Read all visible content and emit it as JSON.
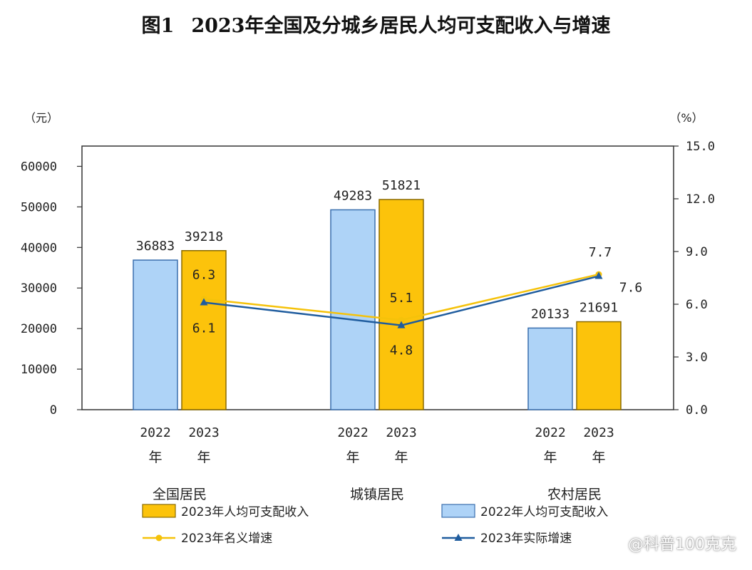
{
  "chart_data": {
    "type": "bar",
    "title_prefix": "图1",
    "title": "2023年全国及分城乡居民人均可支配收入与增速",
    "y_left_unit": "（元）",
    "y_right_unit": "（%）",
    "y_left_ticks": [
      "0",
      "10000",
      "20000",
      "30000",
      "40000",
      "50000",
      "60000"
    ],
    "y_right_ticks": [
      "0.0",
      "3.0",
      "6.0",
      "9.0",
      "12.0",
      "15.0"
    ],
    "ylim_left": [
      0,
      65000
    ],
    "ylim_right": [
      0,
      15
    ],
    "groups": [
      {
        "name": "全国居民",
        "years": [
          "2022",
          "2023"
        ],
        "year_suffix": "年",
        "income": [
          36883,
          39218
        ],
        "income_labels": [
          "36883",
          "39218"
        ],
        "nominal": 6.3,
        "nominal_label": "6.3",
        "real": 6.1,
        "real_label": "6.1"
      },
      {
        "name": "城镇居民",
        "years": [
          "2022",
          "2023"
        ],
        "year_suffix": "年",
        "income": [
          49283,
          51821
        ],
        "income_labels": [
          "49283",
          "51821"
        ],
        "nominal": 5.1,
        "nominal_label": "5.1",
        "real": 4.8,
        "real_label": "4.8"
      },
      {
        "name": "农村居民",
        "years": [
          "2022",
          "2023"
        ],
        "year_suffix": "年",
        "income": [
          20133,
          21691
        ],
        "income_labels": [
          "20133",
          "21691"
        ],
        "nominal": 7.7,
        "nominal_label": "7.7",
        "real": 7.6,
        "real_label": "7.6"
      }
    ],
    "legend": {
      "income_2023": "2023年人均可支配收入",
      "income_2022": "2022年人均可支配收入",
      "nominal": "2023年名义增速",
      "real": "2023年实际增速"
    },
    "colors": {
      "bar_2022": "#aed3f7",
      "bar_2022_stroke": "#3a6fae",
      "bar_2023": "#fcc30b",
      "bar_2023_stroke": "#8a6a00",
      "nominal": "#f5c20a",
      "real": "#1f5c9e",
      "axis": "#333333"
    }
  },
  "watermark": "@科普100克克"
}
